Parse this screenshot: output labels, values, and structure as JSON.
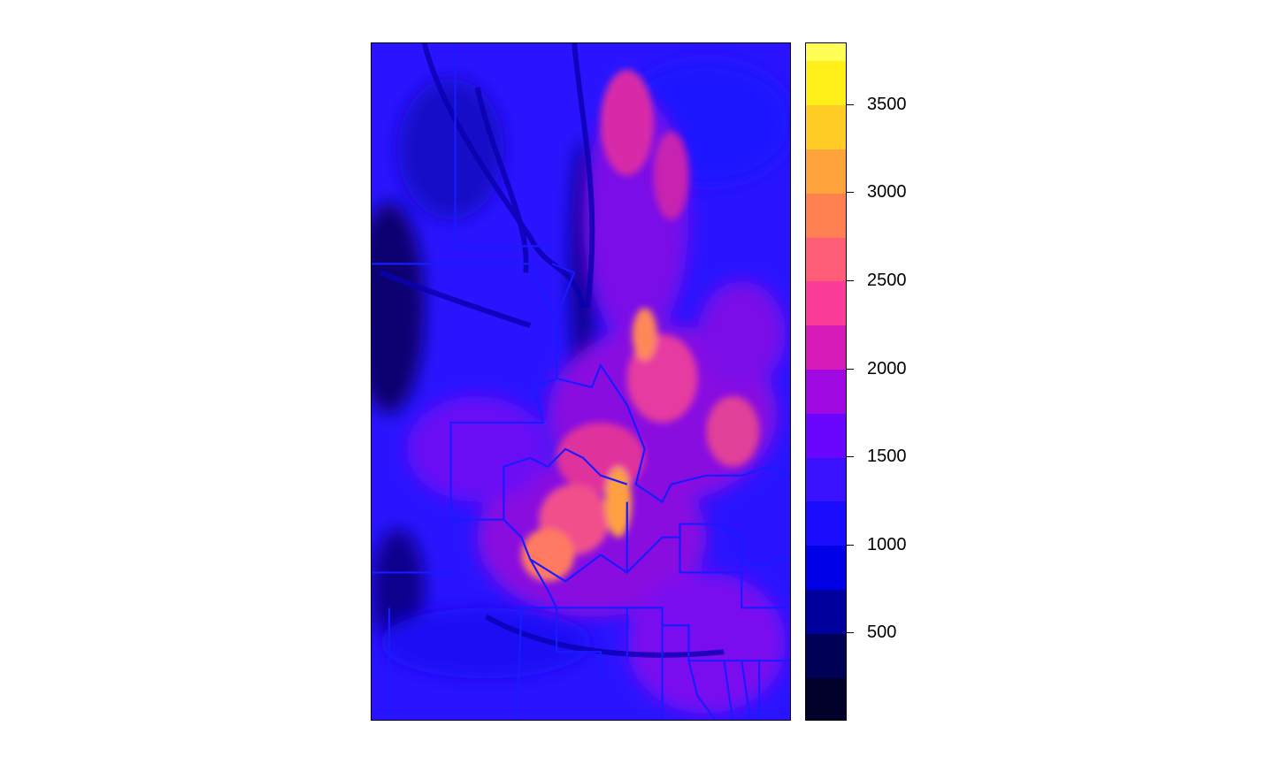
{
  "map": {
    "title": "",
    "background_color": "#ffffff",
    "frame_color": "#000000",
    "boundary_color": "#1a1aff",
    "description_note": ""
  },
  "legend": {
    "type": "continuous-stepped",
    "min": 0,
    "max": 3850,
    "bands": [
      {
        "from": 0,
        "to": 250,
        "color": "#00002b"
      },
      {
        "from": 250,
        "to": 500,
        "color": "#000055"
      },
      {
        "from": 500,
        "to": 750,
        "color": "#00009e"
      },
      {
        "from": 750,
        "to": 1000,
        "color": "#0000e6"
      },
      {
        "from": 1000,
        "to": 1250,
        "color": "#1a0dff"
      },
      {
        "from": 1250,
        "to": 1500,
        "color": "#3a10ff"
      },
      {
        "from": 1500,
        "to": 1750,
        "color": "#6a05ff"
      },
      {
        "from": 1750,
        "to": 2000,
        "color": "#9f08e0"
      },
      {
        "from": 2000,
        "to": 2250,
        "color": "#d61ab8"
      },
      {
        "from": 2250,
        "to": 2500,
        "color": "#fa3c98"
      },
      {
        "from": 2500,
        "to": 2750,
        "color": "#ff5c78"
      },
      {
        "from": 2750,
        "to": 3000,
        "color": "#ff8050"
      },
      {
        "from": 3000,
        "to": 3250,
        "color": "#ffa43c"
      },
      {
        "from": 3250,
        "to": 3500,
        "color": "#ffcc25"
      },
      {
        "from": 3500,
        "to": 3750,
        "color": "#fff01a"
      },
      {
        "from": 3750,
        "to": 3850,
        "color": "#ffff55"
      }
    ],
    "tick_labels": [
      "500",
      "1000",
      "1500",
      "2000",
      "2500",
      "3000",
      "3500"
    ],
    "tick_values": [
      500,
      1000,
      1500,
      2000,
      2500,
      3000,
      3500
    ]
  }
}
